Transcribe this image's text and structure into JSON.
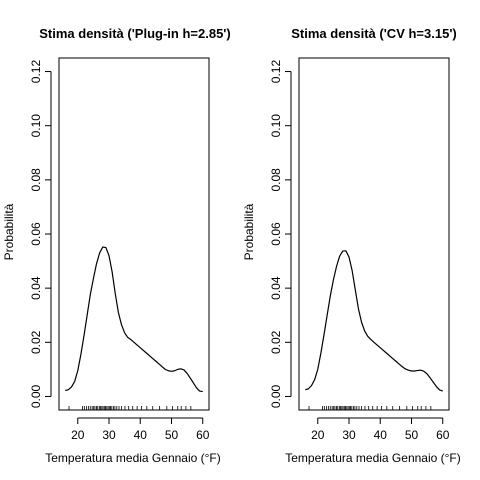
{
  "chart_data": [
    {
      "type": "line",
      "title": "Stima densità ('Plug-in h=2.85')",
      "xlabel": "Temperatura media Gennaio (°F)",
      "ylabel": "Probabilità",
      "xlim": [
        14,
        62
      ],
      "ylim": [
        -0.005,
        0.125
      ],
      "xticks": [
        20,
        30,
        40,
        50,
        60
      ],
      "yticks": [
        0.0,
        0.02,
        0.04,
        0.06,
        0.08,
        0.1,
        0.12
      ],
      "ytick_labels": [
        "0.00",
        "0.02",
        "0.04",
        "0.06",
        "0.08",
        "0.10",
        "0.12"
      ],
      "grid": false,
      "series": [
        {
          "x": [
            16,
            17,
            18,
            19,
            20,
            21,
            22,
            23,
            24,
            25,
            26,
            27,
            28,
            29,
            30,
            31,
            32,
            33,
            34,
            35,
            36,
            37,
            38,
            39,
            40,
            41,
            42,
            43,
            44,
            45,
            46,
            47,
            48,
            49,
            50,
            51,
            52,
            53,
            54,
            55,
            56,
            57,
            58,
            59,
            60
          ],
          "y": [
            0.0022,
            0.0025,
            0.0035,
            0.0055,
            0.0095,
            0.0155,
            0.0225,
            0.03,
            0.0375,
            0.0435,
            0.049,
            0.053,
            0.0552,
            0.055,
            0.052,
            0.046,
            0.038,
            0.031,
            0.0265,
            0.0235,
            0.0218,
            0.021,
            0.02,
            0.019,
            0.018,
            0.017,
            0.016,
            0.015,
            0.014,
            0.013,
            0.012,
            0.011,
            0.01,
            0.0095,
            0.0093,
            0.0095,
            0.01,
            0.0102,
            0.0098,
            0.0085,
            0.0068,
            0.005,
            0.0032,
            0.002,
            0.0018
          ]
        }
      ],
      "rug": [
        17.2,
        21.5,
        22.1,
        22.8,
        23.4,
        24.0,
        24.6,
        25.1,
        25.5,
        26.0,
        26.4,
        26.9,
        27.3,
        27.7,
        28.1,
        28.5,
        28.9,
        29.3,
        29.7,
        30.1,
        30.5,
        30.9,
        31.4,
        31.9,
        32.5,
        33.2,
        34.0,
        35.1,
        36.3,
        37.6,
        39.0,
        40.4,
        42.1,
        44.0,
        46.2,
        48.5,
        50.3,
        52.0,
        53.1,
        54.6,
        56.2
      ]
    },
    {
      "type": "line",
      "title": "Stima densità ('CV h=3.15')",
      "xlabel": "Temperatura media Gennaio (°F)",
      "ylabel": "Probabilità",
      "xlim": [
        14,
        62
      ],
      "ylim": [
        -0.005,
        0.125
      ],
      "xticks": [
        20,
        30,
        40,
        50,
        60
      ],
      "yticks": [
        0.0,
        0.02,
        0.04,
        0.06,
        0.08,
        0.1,
        0.12
      ],
      "ytick_labels": [
        "0.00",
        "0.02",
        "0.04",
        "0.06",
        "0.08",
        "0.10",
        "0.12"
      ],
      "grid": false,
      "series": [
        {
          "x": [
            16,
            17,
            18,
            19,
            20,
            21,
            22,
            23,
            24,
            25,
            26,
            27,
            28,
            29,
            30,
            31,
            32,
            33,
            34,
            35,
            36,
            37,
            38,
            39,
            40,
            41,
            42,
            43,
            44,
            45,
            46,
            47,
            48,
            49,
            50,
            51,
            52,
            53,
            54,
            55,
            56,
            57,
            58,
            59,
            60
          ],
          "y": [
            0.0025,
            0.0028,
            0.004,
            0.0062,
            0.01,
            0.016,
            0.0228,
            0.03,
            0.037,
            0.043,
            0.048,
            0.0518,
            0.0537,
            0.0538,
            0.0515,
            0.0465,
            0.0395,
            0.0325,
            0.0275,
            0.0242,
            0.0222,
            0.021,
            0.02,
            0.019,
            0.018,
            0.017,
            0.016,
            0.015,
            0.014,
            0.013,
            0.012,
            0.011,
            0.0102,
            0.0097,
            0.0094,
            0.0094,
            0.0096,
            0.0097,
            0.0093,
            0.0083,
            0.0068,
            0.0052,
            0.0036,
            0.0024,
            0.002
          ]
        }
      ],
      "rug": [
        17.2,
        21.5,
        22.1,
        22.8,
        23.4,
        24.0,
        24.6,
        25.1,
        25.5,
        26.0,
        26.4,
        26.9,
        27.3,
        27.7,
        28.1,
        28.5,
        28.9,
        29.3,
        29.7,
        30.1,
        30.5,
        30.9,
        31.4,
        31.9,
        32.5,
        33.2,
        34.0,
        35.1,
        36.3,
        37.6,
        39.0,
        40.4,
        42.1,
        44.0,
        46.2,
        48.5,
        50.3,
        52.0,
        53.1,
        54.6,
        56.2
      ]
    }
  ]
}
